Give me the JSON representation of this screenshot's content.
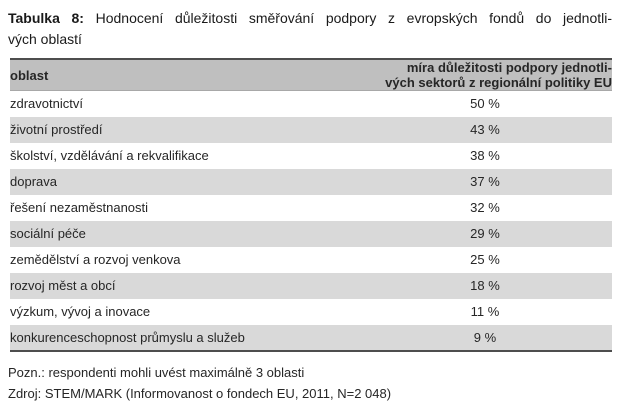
{
  "caption": {
    "bold": "Tabulka 8:",
    "line1_rest": "Hodnocení důležitosti směřování podpory z evropských fondů do jednotli-",
    "line2": "vých oblastí"
  },
  "table": {
    "header": {
      "col1": "oblast",
      "col2_line1": "míra důležitosti podpory jednotli-",
      "col2_line2": "vých sektorů z regionální politiky EU"
    },
    "rows": [
      {
        "oblast": "zdravotnictví",
        "value": "50 %"
      },
      {
        "oblast": "životní prostředí",
        "value": "43 %"
      },
      {
        "oblast": "školství, vzdělávání a rekvalifikace",
        "value": "38 %"
      },
      {
        "oblast": "doprava",
        "value": "37 %"
      },
      {
        "oblast": "řešení nezaměstnanosti",
        "value": "32 %"
      },
      {
        "oblast": "sociální péče",
        "value": "29 %"
      },
      {
        "oblast": "zemědělství a rozvoj venkova",
        "value": "25 %"
      },
      {
        "oblast": "rozvoj měst a obcí",
        "value": "18 %"
      },
      {
        "oblast": "výzkum, vývoj a inovace",
        "value": "11 %"
      },
      {
        "oblast": "konkurenceschopnost průmyslu a služeb",
        "value": "9 %"
      }
    ]
  },
  "notes": {
    "note": "Pozn.: respondenti mohli uvést maximálně 3 oblasti",
    "source": "Zdroj: STEM/MARK (Informovanost o fondech EU, 2011, N=2 048)"
  },
  "colors": {
    "header_bg": "#bfbfbf",
    "row_alt_bg": "#d9d9d9",
    "border": "#4d4d4d",
    "text": "#262626"
  }
}
